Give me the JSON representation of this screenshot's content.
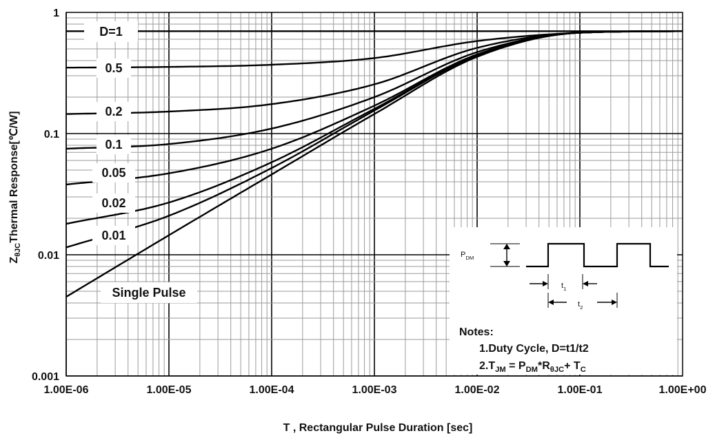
{
  "chart_data": {
    "type": "line",
    "xscale": "log",
    "yscale": "log",
    "xlim": [
      1e-06,
      1
    ],
    "ylim": [
      0.001,
      1
    ],
    "xticks": [
      "1.00E-06",
      "1.00E-05",
      "1.00E-04",
      "1.00E-03",
      "1.00E-02",
      "1.00E-01",
      "1.00E+00"
    ],
    "yticks": [
      "1",
      "0.1",
      "0.01",
      "0.001"
    ],
    "xlabel": "T , Rectangular Pulse Duration [sec]",
    "ylabel": {
      "z": "Z",
      "sub": "θJC",
      "rest": "Thermal Response[℃/W]"
    },
    "grid": true,
    "x": [
      1e-06,
      1e-05,
      0.0001,
      0.001,
      0.01,
      0.1,
      1
    ],
    "series": [
      {
        "name": "D=1",
        "label_y": 0.7,
        "values": [
          0.7,
          0.7,
          0.7,
          0.7,
          0.7,
          0.7,
          0.7
        ]
      },
      {
        "name": "0.5",
        "label_y": 0.35,
        "values": [
          0.35,
          0.355,
          0.37,
          0.42,
          0.58,
          0.68,
          0.7
        ]
      },
      {
        "name": "0.2",
        "label_y": 0.145,
        "values": [
          0.145,
          0.152,
          0.175,
          0.255,
          0.51,
          0.68,
          0.7
        ]
      },
      {
        "name": "0.1",
        "label_y": 0.075,
        "values": [
          0.075,
          0.082,
          0.11,
          0.2,
          0.47,
          0.68,
          0.7
        ]
      },
      {
        "name": "0.05",
        "label_y": 0.038,
        "values": [
          0.038,
          0.047,
          0.075,
          0.17,
          0.45,
          0.68,
          0.7
        ]
      },
      {
        "name": "0.02",
        "label_y": 0.018,
        "values": [
          0.018,
          0.027,
          0.058,
          0.16,
          0.44,
          0.68,
          0.7
        ]
      },
      {
        "name": "0.01",
        "label_y": 0.0115,
        "values": [
          0.0115,
          0.021,
          0.052,
          0.155,
          0.44,
          0.68,
          0.7
        ]
      },
      {
        "name": "Single Pulse",
        "label_y": 0.0045,
        "values": [
          0.0045,
          0.0145,
          0.046,
          0.145,
          0.43,
          0.68,
          0.7
        ]
      }
    ],
    "inset": {
      "pdm": {
        "main": "P",
        "sub": "DM"
      },
      "t1": {
        "main": "t",
        "sub": "1"
      },
      "t2": {
        "main": "t",
        "sub": "2"
      },
      "notes_title": "Notes:",
      "note1": "1.Duty  Cycle, D=t1/t2",
      "note2": {
        "a": "2.T",
        "a_sub": "JM",
        "b": " = P",
        "b_sub": "DM",
        "c": "*R",
        "c_sub": "θJC",
        "d": "+ T",
        "d_sub": "C"
      }
    }
  }
}
